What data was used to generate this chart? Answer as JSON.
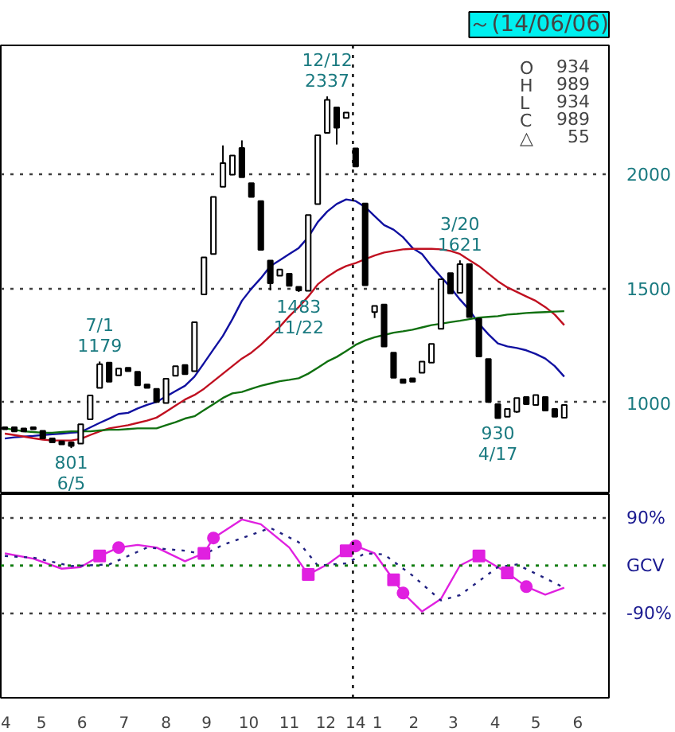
{
  "chart_data": [
    {
      "type": "candlestick",
      "title": "～(14/06/06)",
      "xlim": [
        "2013-04-16",
        "2014-07-09"
      ],
      "ylim": [
        600,
        2560
      ],
      "yticks": [
        1000,
        1500,
        2000
      ],
      "tick_labels": "y",
      "grid": "y",
      "x": [
        "2013-04-19",
        "2013-04-26",
        "2013-05-03",
        "2013-05-10",
        "2013-05-17",
        "2013-05-24",
        "2013-05-31",
        "2013-06-07",
        "2013-06-14",
        "2013-06-21",
        "2013-06-28",
        "2013-07-05",
        "2013-07-12",
        "2013-07-19",
        "2013-07-26",
        "2013-08-02",
        "2013-08-09",
        "2013-08-16",
        "2013-08-23",
        "2013-08-30",
        "2013-09-06",
        "2013-09-13",
        "2013-09-20",
        "2013-09-27",
        "2013-10-04",
        "2013-10-11",
        "2013-10-18",
        "2013-10-25",
        "2013-11-01",
        "2013-11-08",
        "2013-11-15",
        "2013-11-22",
        "2013-11-29",
        "2013-12-06",
        "2013-12-13",
        "2013-12-20",
        "2013-12-27",
        "2014-01-03",
        "2014-01-10",
        "2014-01-17",
        "2014-01-24",
        "2014-01-31",
        "2014-02-07",
        "2014-02-14",
        "2014-02-21",
        "2014-02-28",
        "2014-03-07",
        "2014-03-14",
        "2014-03-21",
        "2014-03-28",
        "2014-04-04",
        "2014-04-11",
        "2014-04-18",
        "2014-04-25",
        "2014-05-02",
        "2014-05-09",
        "2014-05-16",
        "2014-05-23",
        "2014-05-30",
        "2014-06-06"
      ],
      "ohlc": [
        [
          892,
          892,
          883,
          883
        ],
        [
          892,
          892,
          874,
          874
        ],
        [
          887,
          887,
          874,
          874
        ],
        [
          892,
          892,
          883,
          883
        ],
        [
          876,
          876,
          843,
          843
        ],
        [
          843,
          843,
          826,
          826
        ],
        [
          830,
          830,
          817,
          817
        ],
        [
          826,
          826,
          801,
          810
        ],
        [
          821,
          905,
          821,
          905
        ],
        [
          927,
          1031,
          927,
          1031
        ],
        [
          1064,
          1179,
          1064,
          1167
        ],
        [
          1174,
          1174,
          1091,
          1091
        ],
        [
          1119,
          1148,
          1119,
          1148
        ],
        [
          1152,
          1152,
          1137,
          1137
        ],
        [
          1134,
          1134,
          1075,
          1075
        ],
        [
          1079,
          1079,
          1064,
          1064
        ],
        [
          1060,
          1060,
          1002,
          1002
        ],
        [
          998,
          1104,
          998,
          1104
        ],
        [
          1117,
          1159,
          1117,
          1159
        ],
        [
          1164,
          1164,
          1124,
          1124
        ],
        [
          1137,
          1351,
          1137,
          1351
        ],
        [
          1472,
          1634,
          1472,
          1634
        ],
        [
          1649,
          1898,
          1649,
          1898
        ],
        [
          1942,
          2123,
          1942,
          2046
        ],
        [
          1995,
          2079,
          1995,
          2079
        ],
        [
          2112,
          2145,
          1984,
          1984
        ],
        [
          1958,
          1958,
          1898,
          1898
        ],
        [
          1880,
          1880,
          1667,
          1667
        ],
        [
          1620,
          1620,
          1490,
          1521
        ],
        [
          1554,
          1581,
          1554,
          1581
        ],
        [
          1563,
          1563,
          1510,
          1510
        ],
        [
          1505,
          1505,
          1483,
          1490
        ],
        [
          1488,
          1819,
          1488,
          1819
        ],
        [
          1867,
          2167,
          1867,
          2167
        ],
        [
          2178,
          2337,
          2178,
          2322
        ],
        [
          2289,
          2289,
          2127,
          2200
        ],
        [
          2243,
          2266,
          2243,
          2266
        ],
        [
          2110,
          2110,
          2031,
          2031
        ],
        [
          1869,
          1869,
          1512,
          1512
        ],
        [
          1395,
          1422,
          1369,
          1422
        ],
        [
          1428,
          1428,
          1245,
          1245
        ],
        [
          1218,
          1218,
          1108,
          1108
        ],
        [
          1101,
          1101,
          1086,
          1086
        ],
        [
          1106,
          1106,
          1091,
          1091
        ],
        [
          1130,
          1179,
          1130,
          1179
        ],
        [
          1174,
          1256,
          1174,
          1256
        ],
        [
          1322,
          1538,
          1322,
          1538
        ],
        [
          1565,
          1565,
          1477,
          1477
        ],
        [
          1479,
          1621,
          1479,
          1604
        ],
        [
          1604,
          1604,
          1373,
          1373
        ],
        [
          1366,
          1366,
          1201,
          1201
        ],
        [
          1190,
          1190,
          1002,
          1002
        ],
        [
          993,
          993,
          930,
          932
        ],
        [
          938,
          972,
          938,
          972
        ],
        [
          960,
          1020,
          955,
          1020
        ],
        [
          1024,
          1024,
          993,
          993
        ],
        [
          989,
          1033,
          989,
          1033
        ],
        [
          1024,
          1024,
          965,
          965
        ],
        [
          972,
          972,
          938,
          938
        ],
        [
          934,
          989,
          934,
          989
        ]
      ],
      "series": [
        {
          "type": "line",
          "color": "#1010a0",
          "values": [
            843,
            848,
            851,
            854,
            858,
            861,
            864,
            868,
            871,
            891,
            911,
            930,
            950,
            955,
            974,
            990,
            1003,
            1026,
            1050,
            1073,
            1113,
            1172,
            1232,
            1291,
            1364,
            1444,
            1497,
            1543,
            1596,
            1622,
            1649,
            1675,
            1722,
            1788,
            1834,
            1867,
            1887,
            1880,
            1854,
            1814,
            1775,
            1755,
            1722,
            1675,
            1649,
            1596,
            1549,
            1503,
            1450,
            1404,
            1344,
            1298,
            1258,
            1245,
            1238,
            1228,
            1212,
            1192,
            1159,
            1113
          ]
        },
        {
          "type": "line",
          "color": "#c01020",
          "values": [
            864,
            858,
            851,
            844,
            838,
            834,
            834,
            834,
            841,
            858,
            874,
            887,
            894,
            901,
            911,
            921,
            934,
            960,
            987,
            1013,
            1033,
            1060,
            1093,
            1126,
            1159,
            1192,
            1218,
            1252,
            1291,
            1331,
            1377,
            1417,
            1463,
            1516,
            1549,
            1576,
            1596,
            1609,
            1626,
            1642,
            1655,
            1662,
            1669,
            1671,
            1671,
            1671,
            1669,
            1662,
            1649,
            1622,
            1596,
            1563,
            1530,
            1503,
            1483,
            1463,
            1444,
            1417,
            1384,
            1338
          ]
        },
        {
          "type": "line",
          "color": "#107010",
          "values": [
            887,
            881,
            874,
            871,
            868,
            868,
            871,
            874,
            874,
            874,
            878,
            881,
            881,
            884,
            887,
            887,
            887,
            901,
            914,
            930,
            940,
            967,
            993,
            1020,
            1040,
            1046,
            1060,
            1073,
            1083,
            1093,
            1099,
            1106,
            1126,
            1152,
            1179,
            1199,
            1225,
            1252,
            1271,
            1285,
            1295,
            1305,
            1311,
            1318,
            1328,
            1338,
            1344,
            1351,
            1357,
            1364,
            1371,
            1374,
            1377,
            1384,
            1387,
            1391,
            1393,
            1395,
            1397,
            1399
          ]
        }
      ],
      "ref_lines": [
        {
          "axis": "x",
          "value": "2014-01-01",
          "color": "#000000",
          "line_style": "dotted"
        }
      ],
      "annotations": [
        {
          "text": "12/12\n2337",
          "x": "2013-12-13",
          "y": 2337
        },
        {
          "text": "7/1\n1179",
          "x": "2013-06-28",
          "y": 1179
        },
        {
          "text": "801\n6/5",
          "x": "2013-06-07",
          "y": 801
        },
        {
          "text": "1483\n11/22",
          "x": "2013-11-22",
          "y": 1483
        },
        {
          "text": "3/20\n1621",
          "x": "2014-03-21",
          "y": 1621
        },
        {
          "text": "930\n4/17",
          "x": "2014-04-18",
          "y": 930
        },
        "O 934",
        "H 989",
        "L 934",
        "C 989",
        "△ 55"
      ]
    },
    {
      "type": "line",
      "xlim": [
        "2013-04-16",
        "2014-07-09"
      ],
      "ylim": [
        -250,
        135
      ],
      "grid": "y",
      "yticks": [
        {
          "value": 90,
          "label": "90%"
        },
        {
          "value": 0,
          "label": "GCV"
        },
        {
          "value": -90,
          "label": "-90%"
        }
      ],
      "xticks": [
        {
          "value": "2013-04-19",
          "label": "4"
        },
        {
          "value": "2013-05-16",
          "label": "5"
        },
        {
          "value": "2013-06-15",
          "label": "6"
        },
        {
          "value": "2013-07-16",
          "label": "7"
        },
        {
          "value": "2013-08-16",
          "label": "8"
        },
        {
          "value": "2013-09-15",
          "label": "9"
        },
        {
          "value": "2013-10-16",
          "label": "10"
        },
        {
          "value": "2013-11-15",
          "label": "11"
        },
        {
          "value": "2013-12-12",
          "label": "12"
        },
        {
          "value": "2014-01-03",
          "label": "14"
        },
        {
          "value": "2014-01-19",
          "label": "1"
        },
        {
          "value": "2014-02-15",
          "label": "2"
        },
        {
          "value": "2014-03-16",
          "label": "3"
        },
        {
          "value": "2014-04-16",
          "label": "4"
        },
        {
          "value": "2014-05-16",
          "label": "5"
        },
        {
          "value": "2014-06-16",
          "label": "6"
        }
      ],
      "series": [
        {
          "color": "#e020e0",
          "line_style": "solid",
          "x": [
            "2013-04-19",
            "2013-05-10",
            "2013-05-31",
            "2013-06-14",
            "2013-06-28",
            "2013-07-12",
            "2013-07-26",
            "2013-08-09",
            "2013-08-30",
            "2013-09-13",
            "2013-09-20",
            "2013-10-11",
            "2013-10-25",
            "2013-11-15",
            "2013-11-29",
            "2013-12-13",
            "2013-12-27",
            "2014-01-03",
            "2014-01-17",
            "2014-01-31",
            "2014-02-07",
            "2014-02-21",
            "2014-03-07",
            "2014-03-21",
            "2014-04-04",
            "2014-04-25",
            "2014-05-09",
            "2014-05-23",
            "2014-06-06"
          ],
          "values": [
            23,
            13,
            -6,
            -3,
            18,
            34,
            39,
            34,
            8,
            23,
            52,
            87,
            78,
            34,
            -17,
            2,
            28,
            37,
            23,
            -27,
            -52,
            -87,
            -63,
            0,
            18,
            -14,
            -40,
            -55,
            -42
          ]
        },
        {
          "color": "#202080",
          "line_style": "dotted",
          "x": [
            "2013-04-19",
            "2013-05-10",
            "2013-06-07",
            "2013-07-05",
            "2013-08-02",
            "2013-08-30",
            "2013-09-13",
            "2013-09-27",
            "2013-11-01",
            "2013-11-22",
            "2013-12-06",
            "2013-12-27",
            "2014-01-10",
            "2014-01-24",
            "2014-02-14",
            "2014-03-07",
            "2014-03-21",
            "2014-04-18",
            "2014-05-02",
            "2014-05-23",
            "2014-06-06"
          ],
          "values": [
            18,
            15,
            -1,
            2,
            34,
            28,
            21,
            39,
            71,
            44,
            0,
            4,
            23,
            21,
            -19,
            -66,
            -56,
            -3,
            2,
            -24,
            -42
          ]
        },
        {
          "type": "scatter",
          "color": "#e020e0",
          "marker": "square",
          "x": [
            "2013-06-28",
            "2013-09-13",
            "2013-12-27",
            "2014-04-04",
            "2013-11-29",
            "2014-01-31",
            "2014-04-25"
          ],
          "values": [
            18,
            23,
            28,
            18,
            -17,
            -27,
            -14
          ]
        },
        {
          "type": "scatter",
          "color": "#e020e0",
          "marker": "circle",
          "x": [
            "2013-07-12",
            "2013-09-20",
            "2014-01-03",
            "2014-02-07",
            "2014-05-09"
          ],
          "values": [
            34,
            52,
            37,
            -52,
            -40
          ]
        }
      ],
      "ref_lines": [
        {
          "axis": "y",
          "value": 0,
          "color": "#008000",
          "line_style": "dotted"
        },
        {
          "axis": "x",
          "value": "2014-01-01",
          "color": "#000000",
          "line_style": "dotted"
        }
      ]
    }
  ]
}
